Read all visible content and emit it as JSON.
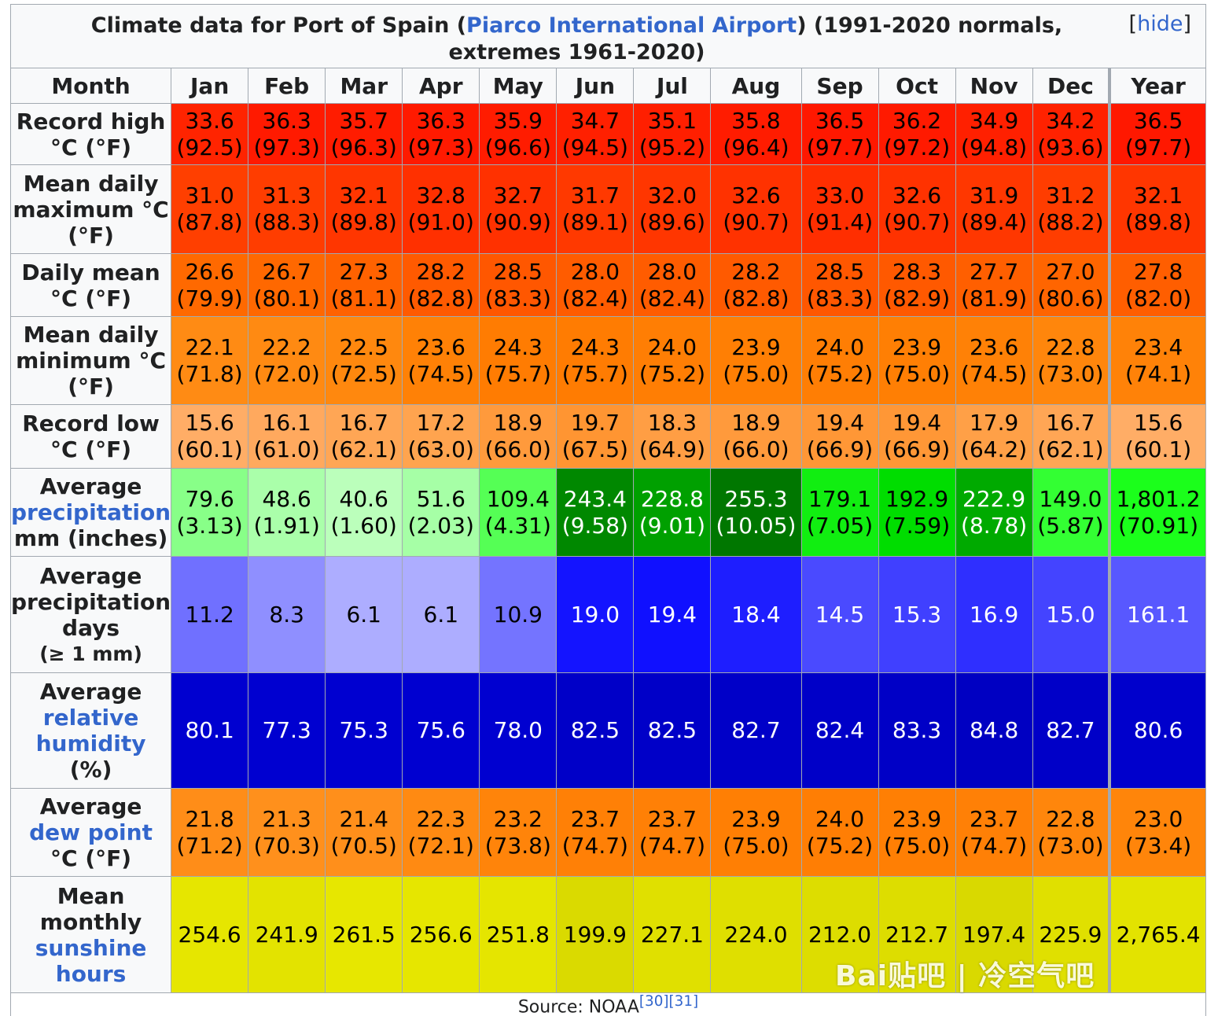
{
  "caption": {
    "prefix": "Climate data for Port of Spain (",
    "link": "Piarco International Airport",
    "suffix": ") (1991-2020 normals, extremes 1961-2020)",
    "hide_open": "[",
    "hide_label": "hide",
    "hide_close": "]"
  },
  "header": {
    "month_label": "Month",
    "months": [
      "Jan",
      "Feb",
      "Mar",
      "Apr",
      "May",
      "Jun",
      "Jul",
      "Aug",
      "Sep",
      "Oct",
      "Nov",
      "Dec"
    ],
    "year_label": "Year"
  },
  "rows": [
    {
      "label": [
        {
          "text": "Record high"
        },
        {
          "text": "°C (°F)"
        }
      ],
      "cells": [
        {
          "main": "33.6",
          "sub": "(92.5)",
          "bg": "#ff2400",
          "fg": "#000000"
        },
        {
          "main": "36.3",
          "sub": "(97.3)",
          "bg": "#ff1a00",
          "fg": "#000000"
        },
        {
          "main": "35.7",
          "sub": "(96.3)",
          "bg": "#ff1c00",
          "fg": "#000000"
        },
        {
          "main": "36.3",
          "sub": "(97.3)",
          "bg": "#ff1a00",
          "fg": "#000000"
        },
        {
          "main": "35.9",
          "sub": "(96.6)",
          "bg": "#ff1c00",
          "fg": "#000000"
        },
        {
          "main": "34.7",
          "sub": "(94.5)",
          "bg": "#ff2000",
          "fg": "#000000"
        },
        {
          "main": "35.1",
          "sub": "(95.2)",
          "bg": "#ff1f00",
          "fg": "#000000"
        },
        {
          "main": "35.8",
          "sub": "(96.4)",
          "bg": "#ff1c00",
          "fg": "#000000"
        },
        {
          "main": "36.5",
          "sub": "(97.7)",
          "bg": "#ff1800",
          "fg": "#000000"
        },
        {
          "main": "36.2",
          "sub": "(97.2)",
          "bg": "#ff1a00",
          "fg": "#000000"
        },
        {
          "main": "34.9",
          "sub": "(94.8)",
          "bg": "#ff2000",
          "fg": "#000000"
        },
        {
          "main": "34.2",
          "sub": "(93.6)",
          "bg": "#ff2200",
          "fg": "#000000"
        }
      ],
      "year": {
        "main": "36.5",
        "sub": "(97.7)",
        "bg": "#ff1800",
        "fg": "#000000"
      }
    },
    {
      "label": [
        {
          "text": "Mean daily"
        },
        {
          "text": "maximum °C"
        },
        {
          "text": "(°F)"
        }
      ],
      "cells": [
        {
          "main": "31.0",
          "sub": "(87.8)",
          "bg": "#ff3f00",
          "fg": "#000000"
        },
        {
          "main": "31.3",
          "sub": "(88.3)",
          "bg": "#ff3d00",
          "fg": "#000000"
        },
        {
          "main": "32.1",
          "sub": "(89.8)",
          "bg": "#ff3600",
          "fg": "#000000"
        },
        {
          "main": "32.8",
          "sub": "(91.0)",
          "bg": "#ff3000",
          "fg": "#000000"
        },
        {
          "main": "32.7",
          "sub": "(90.9)",
          "bg": "#ff3100",
          "fg": "#000000"
        },
        {
          "main": "31.7",
          "sub": "(89.1)",
          "bg": "#ff3900",
          "fg": "#000000"
        },
        {
          "main": "32.0",
          "sub": "(89.6)",
          "bg": "#ff3600",
          "fg": "#000000"
        },
        {
          "main": "32.6",
          "sub": "(90.7)",
          "bg": "#ff3200",
          "fg": "#000000"
        },
        {
          "main": "33.0",
          "sub": "(91.4)",
          "bg": "#ff2e00",
          "fg": "#000000"
        },
        {
          "main": "32.6",
          "sub": "(90.7)",
          "bg": "#ff3200",
          "fg": "#000000"
        },
        {
          "main": "31.9",
          "sub": "(89.4)",
          "bg": "#ff3700",
          "fg": "#000000"
        },
        {
          "main": "31.2",
          "sub": "(88.2)",
          "bg": "#ff3d00",
          "fg": "#000000"
        }
      ],
      "year": {
        "main": "32.1",
        "sub": "(89.8)",
        "bg": "#ff3600",
        "fg": "#000000"
      }
    },
    {
      "label": [
        {
          "text": "Daily mean"
        },
        {
          "text": "°C (°F)"
        }
      ],
      "cells": [
        {
          "main": "26.6",
          "sub": "(79.9)",
          "bg": "#ff6900",
          "fg": "#000000"
        },
        {
          "main": "26.7",
          "sub": "(80.1)",
          "bg": "#ff6800",
          "fg": "#000000"
        },
        {
          "main": "27.3",
          "sub": "(81.1)",
          "bg": "#ff6200",
          "fg": "#000000"
        },
        {
          "main": "28.2",
          "sub": "(82.8)",
          "bg": "#ff5a00",
          "fg": "#000000"
        },
        {
          "main": "28.5",
          "sub": "(83.3)",
          "bg": "#ff5700",
          "fg": "#000000"
        },
        {
          "main": "28.0",
          "sub": "(82.4)",
          "bg": "#ff5c00",
          "fg": "#000000"
        },
        {
          "main": "28.0",
          "sub": "(82.4)",
          "bg": "#ff5c00",
          "fg": "#000000"
        },
        {
          "main": "28.2",
          "sub": "(82.8)",
          "bg": "#ff5a00",
          "fg": "#000000"
        },
        {
          "main": "28.5",
          "sub": "(83.3)",
          "bg": "#ff5700",
          "fg": "#000000"
        },
        {
          "main": "28.3",
          "sub": "(82.9)",
          "bg": "#ff5900",
          "fg": "#000000"
        },
        {
          "main": "27.7",
          "sub": "(81.9)",
          "bg": "#ff5f00",
          "fg": "#000000"
        },
        {
          "main": "27.0",
          "sub": "(80.6)",
          "bg": "#ff6500",
          "fg": "#000000"
        }
      ],
      "year": {
        "main": "27.8",
        "sub": "(82.0)",
        "bg": "#ff5e00",
        "fg": "#000000"
      }
    },
    {
      "label": [
        {
          "text": "Mean daily"
        },
        {
          "text": "minimum °C"
        },
        {
          "text": "(°F)"
        }
      ],
      "cells": [
        {
          "main": "22.1",
          "sub": "(71.8)",
          "bg": "#ff8b14",
          "fg": "#000000"
        },
        {
          "main": "22.2",
          "sub": "(72.0)",
          "bg": "#ff8a12",
          "fg": "#000000"
        },
        {
          "main": "22.5",
          "sub": "(72.5)",
          "bg": "#ff880e",
          "fg": "#000000"
        },
        {
          "main": "23.6",
          "sub": "(74.5)",
          "bg": "#ff8106",
          "fg": "#000000"
        },
        {
          "main": "24.3",
          "sub": "(75.7)",
          "bg": "#ff7c02",
          "fg": "#000000"
        },
        {
          "main": "24.3",
          "sub": "(75.7)",
          "bg": "#ff7c02",
          "fg": "#000000"
        },
        {
          "main": "24.0",
          "sub": "(75.2)",
          "bg": "#ff7e04",
          "fg": "#000000"
        },
        {
          "main": "23.9",
          "sub": "(75.0)",
          "bg": "#ff7f04",
          "fg": "#000000"
        },
        {
          "main": "24.0",
          "sub": "(75.2)",
          "bg": "#ff7e04",
          "fg": "#000000"
        },
        {
          "main": "23.9",
          "sub": "(75.0)",
          "bg": "#ff7f04",
          "fg": "#000000"
        },
        {
          "main": "23.6",
          "sub": "(74.5)",
          "bg": "#ff8106",
          "fg": "#000000"
        },
        {
          "main": "22.8",
          "sub": "(73.0)",
          "bg": "#ff860c",
          "fg": "#000000"
        }
      ],
      "year": {
        "main": "23.4",
        "sub": "(74.1)",
        "bg": "#ff8208",
        "fg": "#000000"
      }
    },
    {
      "label": [
        {
          "text": "Record low"
        },
        {
          "text": "°C (°F)"
        }
      ],
      "cells": [
        {
          "main": "15.6",
          "sub": "(60.1)",
          "bg": "#ffad66",
          "fg": "#000000"
        },
        {
          "main": "16.1",
          "sub": "(61.0)",
          "bg": "#ffa95e",
          "fg": "#000000"
        },
        {
          "main": "16.7",
          "sub": "(62.1)",
          "bg": "#ffa655",
          "fg": "#000000"
        },
        {
          "main": "17.2",
          "sub": "(63.0)",
          "bg": "#ffa44f",
          "fg": "#000000"
        },
        {
          "main": "18.9",
          "sub": "(66.0)",
          "bg": "#ff9a3c",
          "fg": "#000000"
        },
        {
          "main": "19.7",
          "sub": "(67.5)",
          "bg": "#ff9532",
          "fg": "#000000"
        },
        {
          "main": "18.3",
          "sub": "(64.9)",
          "bg": "#ff9e44",
          "fg": "#000000"
        },
        {
          "main": "18.9",
          "sub": "(66.0)",
          "bg": "#ff9a3c",
          "fg": "#000000"
        },
        {
          "main": "19.4",
          "sub": "(66.9)",
          "bg": "#ff9736",
          "fg": "#000000"
        },
        {
          "main": "19.4",
          "sub": "(66.9)",
          "bg": "#ff9736",
          "fg": "#000000"
        },
        {
          "main": "17.9",
          "sub": "(64.2)",
          "bg": "#ffa047",
          "fg": "#000000"
        },
        {
          "main": "16.7",
          "sub": "(62.1)",
          "bg": "#ffa655",
          "fg": "#000000"
        }
      ],
      "year": {
        "main": "15.6",
        "sub": "(60.1)",
        "bg": "#ffad66",
        "fg": "#000000"
      }
    },
    {
      "label": [
        {
          "text": "Average"
        },
        {
          "text": "precipitation",
          "link": true
        },
        {
          "text": "mm (inches)"
        }
      ],
      "cells": [
        {
          "main": "79.6",
          "sub": "(3.13)",
          "bg": "#88ff88",
          "fg": "#000000"
        },
        {
          "main": "48.6",
          "sub": "(1.91)",
          "bg": "#aaffaa",
          "fg": "#000000"
        },
        {
          "main": "40.6",
          "sub": "(1.60)",
          "bg": "#bbffbb",
          "fg": "#000000"
        },
        {
          "main": "51.6",
          "sub": "(2.03)",
          "bg": "#a6ffa6",
          "fg": "#000000"
        },
        {
          "main": "109.4",
          "sub": "(4.31)",
          "bg": "#55ff55",
          "fg": "#000000"
        },
        {
          "main": "243.4",
          "sub": "(9.58)",
          "bg": "#008800",
          "fg": "#ffffff"
        },
        {
          "main": "228.8",
          "sub": "(9.01)",
          "bg": "#00a000",
          "fg": "#ffffff"
        },
        {
          "main": "255.3",
          "sub": "(10.05)",
          "bg": "#007700",
          "fg": "#ffffff"
        },
        {
          "main": "179.1",
          "sub": "(7.05)",
          "bg": "#11ee11",
          "fg": "#000000"
        },
        {
          "main": "192.9",
          "sub": "(7.59)",
          "bg": "#00dd00",
          "fg": "#000000"
        },
        {
          "main": "222.9",
          "sub": "(8.78)",
          "bg": "#00aa00",
          "fg": "#ffffff"
        },
        {
          "main": "149.0",
          "sub": "(5.87)",
          "bg": "#33ff33",
          "fg": "#000000"
        }
      ],
      "year": {
        "main": "1,801.2",
        "sub": "(70.91)",
        "bg": "#1bff1b",
        "fg": "#000000"
      }
    },
    {
      "label": [
        {
          "text": "Average"
        },
        {
          "text": "precipitation"
        },
        {
          "text": "days"
        },
        {
          "text": "(≥ 1 mm)",
          "small": true
        }
      ],
      "cells": [
        {
          "main": "11.2",
          "bg": "#7070ff",
          "fg": "#000000"
        },
        {
          "main": "8.3",
          "bg": "#8f8fff",
          "fg": "#000000"
        },
        {
          "main": "6.1",
          "bg": "#adadff",
          "fg": "#000000"
        },
        {
          "main": "6.1",
          "bg": "#adadff",
          "fg": "#000000"
        },
        {
          "main": "10.9",
          "bg": "#7474ff",
          "fg": "#000000"
        },
        {
          "main": "19.0",
          "bg": "#1414ff",
          "fg": "#ffffff"
        },
        {
          "main": "19.4",
          "bg": "#1010ff",
          "fg": "#ffffff"
        },
        {
          "main": "18.4",
          "bg": "#1e1eff",
          "fg": "#ffffff"
        },
        {
          "main": "14.5",
          "bg": "#4a4aff",
          "fg": "#ffffff"
        },
        {
          "main": "15.3",
          "bg": "#4040ff",
          "fg": "#ffffff"
        },
        {
          "main": "16.9",
          "bg": "#2f2fff",
          "fg": "#ffffff"
        },
        {
          "main": "15.0",
          "bg": "#4444ff",
          "fg": "#ffffff"
        }
      ],
      "year": {
        "main": "161.1",
        "bg": "#5858ff",
        "fg": "#ffffff"
      }
    },
    {
      "label": [
        {
          "text": "Average"
        },
        {
          "text": "relative",
          "link": true
        },
        {
          "text": "humidity",
          "link": true
        },
        {
          "text": "(%)"
        }
      ],
      "cells": [
        {
          "main": "80.1",
          "bg": "#0000d0",
          "fg": "#ffffff"
        },
        {
          "main": "77.3",
          "bg": "#0000d0",
          "fg": "#ffffff"
        },
        {
          "main": "75.3",
          "bg": "#0000d0",
          "fg": "#ffffff"
        },
        {
          "main": "75.6",
          "bg": "#0000d0",
          "fg": "#ffffff"
        },
        {
          "main": "78.0",
          "bg": "#0000d0",
          "fg": "#ffffff"
        },
        {
          "main": "82.5",
          "bg": "#0000c8",
          "fg": "#ffffff"
        },
        {
          "main": "82.5",
          "bg": "#0000c8",
          "fg": "#ffffff"
        },
        {
          "main": "82.7",
          "bg": "#0000c8",
          "fg": "#ffffff"
        },
        {
          "main": "82.4",
          "bg": "#0000c8",
          "fg": "#ffffff"
        },
        {
          "main": "83.3",
          "bg": "#0000c6",
          "fg": "#ffffff"
        },
        {
          "main": "84.8",
          "bg": "#0000c2",
          "fg": "#ffffff"
        },
        {
          "main": "82.7",
          "bg": "#0000c8",
          "fg": "#ffffff"
        }
      ],
      "year": {
        "main": "80.6",
        "bg": "#0000cc",
        "fg": "#ffffff"
      }
    },
    {
      "label": [
        {
          "text": "Average"
        },
        {
          "text": "dew point",
          "link": true
        },
        {
          "text": "°C (°F)"
        }
      ],
      "cells": [
        {
          "main": "21.8",
          "sub": "(71.2)",
          "bg": "#ff8d18",
          "fg": "#000000"
        },
        {
          "main": "21.3",
          "sub": "(70.3)",
          "bg": "#ff901c",
          "fg": "#000000"
        },
        {
          "main": "21.4",
          "sub": "(70.5)",
          "bg": "#ff8f1b",
          "fg": "#000000"
        },
        {
          "main": "22.3",
          "sub": "(72.1)",
          "bg": "#ff8a12",
          "fg": "#000000"
        },
        {
          "main": "23.2",
          "sub": "(73.8)",
          "bg": "#ff840a",
          "fg": "#000000"
        },
        {
          "main": "23.7",
          "sub": "(74.7)",
          "bg": "#ff8006",
          "fg": "#000000"
        },
        {
          "main": "23.7",
          "sub": "(74.7)",
          "bg": "#ff8006",
          "fg": "#000000"
        },
        {
          "main": "23.9",
          "sub": "(75.0)",
          "bg": "#ff7f04",
          "fg": "#000000"
        },
        {
          "main": "24.0",
          "sub": "(75.2)",
          "bg": "#ff7e04",
          "fg": "#000000"
        },
        {
          "main": "23.9",
          "sub": "(75.0)",
          "bg": "#ff7f04",
          "fg": "#000000"
        },
        {
          "main": "23.7",
          "sub": "(74.7)",
          "bg": "#ff8006",
          "fg": "#000000"
        },
        {
          "main": "22.8",
          "sub": "(73.0)",
          "bg": "#ff860c",
          "fg": "#000000"
        }
      ],
      "year": {
        "main": "23.0",
        "sub": "(73.4)",
        "bg": "#ff850a",
        "fg": "#000000"
      }
    },
    {
      "label": [
        {
          "text": "Mean"
        },
        {
          "text": "monthly"
        },
        {
          "text": "sunshine",
          "link": true
        },
        {
          "text": "hours",
          "link": true
        }
      ],
      "cells": [
        {
          "main": "254.6",
          "bg": "#e6e600",
          "fg": "#000000"
        },
        {
          "main": "241.9",
          "bg": "#e3e300",
          "fg": "#000000"
        },
        {
          "main": "261.5",
          "bg": "#e7e700",
          "fg": "#000000"
        },
        {
          "main": "256.6",
          "bg": "#e6e600",
          "fg": "#000000"
        },
        {
          "main": "251.8",
          "bg": "#e5e500",
          "fg": "#000000"
        },
        {
          "main": "199.9",
          "bg": "#dada00",
          "fg": "#000000"
        },
        {
          "main": "227.1",
          "bg": "#e0e000",
          "fg": "#000000"
        },
        {
          "main": "224.0",
          "bg": "#dfdf00",
          "fg": "#000000"
        },
        {
          "main": "212.0",
          "bg": "#dddd00",
          "fg": "#000000"
        },
        {
          "main": "212.7",
          "bg": "#dddd00",
          "fg": "#000000"
        },
        {
          "main": "197.4",
          "bg": "#d9d900",
          "fg": "#000000"
        },
        {
          "main": "225.9",
          "bg": "#e0e000",
          "fg": "#000000"
        }
      ],
      "year": {
        "main": "2,765.4",
        "bg": "#e3e300",
        "fg": "#000000"
      }
    }
  ],
  "source": {
    "prefix": "Source: NOAA",
    "refs": "[30][31]"
  },
  "watermark": "Bai贴吧 | 冷空气吧"
}
